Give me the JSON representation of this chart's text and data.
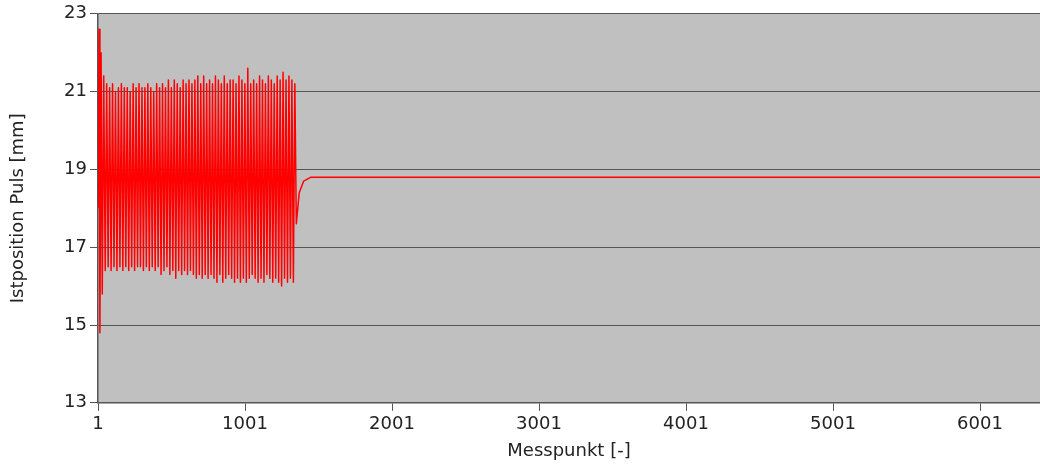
{
  "chart_data": {
    "type": "line",
    "xlabel": "Messpunkt [-]",
    "ylabel": "Istposition Puls [mm]",
    "xlim": [
      1,
      6409
    ],
    "xticks": [
      1,
      1001,
      2001,
      3001,
      4001,
      5001,
      6001
    ],
    "ylim": [
      13,
      23
    ],
    "yticks": [
      13,
      15,
      17,
      19,
      21,
      23
    ],
    "grid": "y",
    "marker": "none",
    "line_style": "solid",
    "legend": false,
    "series": [
      {
        "color": "#ff0000",
        "x": [
          1,
          8,
          14,
          22,
          30,
          40,
          50,
          60,
          70,
          80,
          90,
          100,
          110,
          120,
          130,
          140,
          150,
          160,
          170,
          180,
          190,
          200,
          210,
          220,
          230,
          240,
          250,
          260,
          270,
          280,
          290,
          300,
          310,
          320,
          330,
          340,
          350,
          360,
          370,
          380,
          390,
          400,
          410,
          420,
          430,
          440,
          450,
          460,
          470,
          480,
          490,
          500,
          510,
          520,
          530,
          540,
          550,
          560,
          570,
          580,
          590,
          600,
          610,
          620,
          630,
          640,
          650,
          660,
          670,
          680,
          690,
          700,
          710,
          720,
          730,
          740,
          750,
          760,
          770,
          780,
          790,
          800,
          810,
          820,
          830,
          840,
          850,
          860,
          870,
          880,
          890,
          900,
          910,
          920,
          930,
          940,
          950,
          960,
          970,
          980,
          990,
          1000,
          1010,
          1020,
          1030,
          1040,
          1050,
          1060,
          1070,
          1080,
          1090,
          1100,
          1110,
          1120,
          1130,
          1140,
          1150,
          1160,
          1170,
          1180,
          1190,
          1200,
          1210,
          1220,
          1230,
          1240,
          1250,
          1260,
          1270,
          1280,
          1290,
          1300,
          1310,
          1320,
          1330,
          1340,
          1350,
          1370,
          1400,
          1450,
          2000,
          6409
        ],
        "values": [
          18.0,
          22.6,
          14.8,
          22.0,
          15.8,
          21.4,
          16.4,
          21.2,
          16.5,
          21.1,
          16.4,
          21.2,
          16.5,
          21.0,
          16.4,
          21.1,
          16.5,
          21.2,
          16.4,
          21.1,
          16.5,
          21.1,
          16.4,
          21.0,
          16.5,
          21.2,
          16.4,
          21.1,
          16.5,
          21.2,
          16.5,
          21.1,
          16.4,
          21.1,
          16.5,
          21.2,
          16.4,
          21.1,
          16.5,
          21.0,
          16.4,
          21.2,
          16.5,
          21.1,
          16.3,
          21.2,
          16.4,
          21.1,
          16.5,
          21.3,
          16.3,
          21.1,
          16.4,
          21.3,
          16.2,
          21.2,
          16.4,
          21.1,
          16.3,
          21.3,
          16.4,
          21.2,
          16.3,
          21.3,
          16.4,
          21.2,
          16.3,
          21.3,
          16.2,
          21.4,
          16.3,
          21.2,
          16.2,
          21.4,
          16.3,
          21.2,
          16.2,
          21.3,
          16.3,
          21.2,
          16.2,
          21.4,
          16.1,
          21.3,
          16.3,
          21.2,
          16.1,
          21.4,
          16.2,
          21.2,
          16.3,
          21.3,
          16.2,
          21.3,
          16.1,
          21.2,
          16.2,
          21.4,
          16.1,
          21.3,
          16.2,
          21.2,
          16.1,
          21.6,
          16.2,
          21.2,
          16.3,
          21.3,
          16.2,
          21.2,
          16.1,
          21.4,
          16.2,
          21.3,
          16.1,
          21.2,
          16.3,
          21.4,
          16.2,
          21.3,
          16.1,
          21.2,
          16.2,
          21.4,
          16.1,
          21.3,
          16.0,
          21.5,
          16.2,
          21.3,
          16.1,
          21.4,
          16.2,
          21.3,
          16.1,
          21.2,
          17.6,
          18.4,
          18.7,
          18.8,
          18.8,
          18.8
        ]
      }
    ]
  }
}
